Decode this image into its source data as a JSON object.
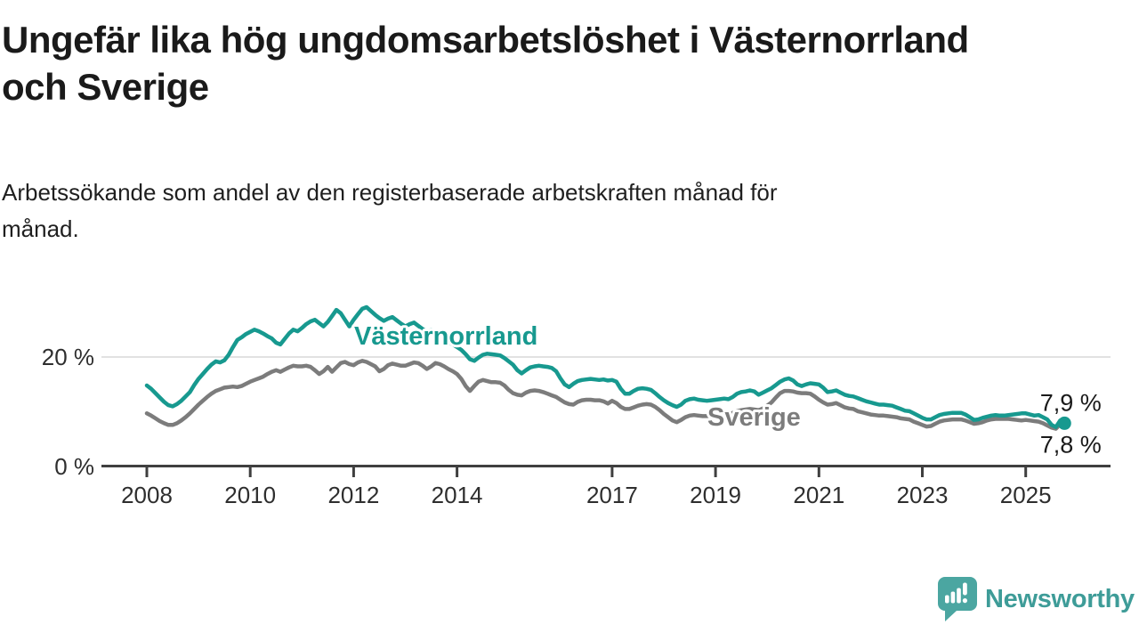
{
  "header": {
    "title": "Ungefär lika hög ungdomsarbetslöshet i Västernorrland\noch Sverige",
    "subtitle": "Arbetssökande som andel av den registerbaserade arbetskraften månad för\nmånad."
  },
  "branding": {
    "name": "Newsworthy",
    "icon": "newsworthy-speech-bubble-chart-icon",
    "icon_color": "#4BA6A1",
    "text_color": "#3E9C98"
  },
  "colors": {
    "vasternorrland": "#17998F",
    "sverige": "#7C7C7C",
    "axis_line": "#3f3f3f",
    "gridline": "#d9d9d9",
    "axis_text": "#2e2e2e",
    "end_label_text": "#1a1a1a"
  },
  "chart_data": {
    "type": "line",
    "title": "Ungefär lika hög ungdomsarbetslöshet i Västernorrland och Sverige",
    "subtitle": "Arbetssökande som andel av den registerbaserade arbetskraften månad för månad.",
    "unit": "%",
    "frequency": "monthly",
    "x_start": "2008-01",
    "x_end": "2025-10",
    "x_ticks": [
      "2008",
      "2010",
      "2012",
      "2014",
      "2017",
      "2019",
      "2021",
      "2023",
      "2025"
    ],
    "y_ticks": [
      {
        "value": 0,
        "label": "0 %"
      },
      {
        "value": 20,
        "label": "20 %"
      }
    ],
    "ylim": [
      0,
      32
    ],
    "grid": "horizontal-at-20-only",
    "legend_position": "inline-labels-on-lines",
    "series": [
      {
        "name": "Västernorrland",
        "color": "#17998F",
        "end_label": "7,9 %",
        "end_value": 7.9,
        "end_marker": "dot",
        "values": [
          14.8,
          14.2,
          13.4,
          12.6,
          11.8,
          11.2,
          11.0,
          11.4,
          12.0,
          12.8,
          13.6,
          14.9,
          16.0,
          16.9,
          17.8,
          18.6,
          19.2,
          19.0,
          19.4,
          20.4,
          21.8,
          23.1,
          23.6,
          24.2,
          24.6,
          25.0,
          24.7,
          24.3,
          23.8,
          23.4,
          22.6,
          22.3,
          23.3,
          24.3,
          25.0,
          24.7,
          25.3,
          26.0,
          26.5,
          26.8,
          26.2,
          25.6,
          26.4,
          27.5,
          28.6,
          28.0,
          26.8,
          25.6,
          26.8,
          27.8,
          28.8,
          29.1,
          28.4,
          27.7,
          27.1,
          26.6,
          27.0,
          27.3,
          26.7,
          26.1,
          25.6,
          26.0,
          26.3,
          25.7,
          25.1,
          24.6,
          24.9,
          24.3,
          23.7,
          23.1,
          22.7,
          22.3,
          21.8,
          21.3,
          20.5,
          19.6,
          19.3,
          19.9,
          20.4,
          20.6,
          20.5,
          20.4,
          20.3,
          19.8,
          19.2,
          18.6,
          17.6,
          17.0,
          17.6,
          18.1,
          18.3,
          18.4,
          18.3,
          18.2,
          18.0,
          17.4,
          16.1,
          15.0,
          14.5,
          15.1,
          15.6,
          15.8,
          15.9,
          16.0,
          15.9,
          15.8,
          15.9,
          15.7,
          15.8,
          15.5,
          14.2,
          13.3,
          13.3,
          13.8,
          14.2,
          14.3,
          14.2,
          14.0,
          13.4,
          12.7,
          12.1,
          11.6,
          11.2,
          10.9,
          11.3,
          12.0,
          12.3,
          12.4,
          12.2,
          12.1,
          12.0,
          12.1,
          12.2,
          12.3,
          12.4,
          12.3,
          12.7,
          13.3,
          13.6,
          13.7,
          13.9,
          13.7,
          13.1,
          13.5,
          13.9,
          14.3,
          14.9,
          15.5,
          15.9,
          16.1,
          15.7,
          15.0,
          14.7,
          15.0,
          15.2,
          15.1,
          15.0,
          14.4,
          13.6,
          13.7,
          13.9,
          13.5,
          13.1,
          12.9,
          12.8,
          12.5,
          12.2,
          11.9,
          11.7,
          11.5,
          11.3,
          11.3,
          11.2,
          11.1,
          10.8,
          10.5,
          10.2,
          10.1,
          9.7,
          9.3,
          8.9,
          8.6,
          8.6,
          9.0,
          9.4,
          9.6,
          9.7,
          9.8,
          9.8,
          9.8,
          9.5,
          9.0,
          8.5,
          8.6,
          8.9,
          9.1,
          9.3,
          9.4,
          9.3,
          9.3,
          9.4,
          9.5,
          9.6,
          9.7,
          9.7,
          9.5,
          9.3,
          9.4,
          9.0,
          8.6,
          7.6,
          7.2,
          8.4,
          7.9
        ]
      },
      {
        "name": "Sverige",
        "color": "#7C7C7C",
        "end_label": "7,8 %",
        "end_value": 7.8,
        "end_marker": "none",
        "values": [
          9.7,
          9.3,
          8.8,
          8.3,
          7.9,
          7.6,
          7.6,
          7.9,
          8.4,
          9.0,
          9.7,
          10.5,
          11.3,
          12.0,
          12.7,
          13.3,
          13.8,
          14.1,
          14.4,
          14.5,
          14.6,
          14.5,
          14.7,
          15.1,
          15.5,
          15.8,
          16.1,
          16.4,
          16.9,
          17.3,
          17.6,
          17.3,
          17.7,
          18.1,
          18.4,
          18.3,
          18.3,
          18.4,
          18.2,
          17.6,
          16.9,
          17.4,
          18.2,
          17.3,
          18.1,
          18.9,
          19.1,
          18.7,
          18.5,
          19.0,
          19.3,
          19.1,
          18.7,
          18.3,
          17.4,
          17.8,
          18.5,
          18.8,
          18.6,
          18.4,
          18.4,
          18.7,
          19.0,
          18.9,
          18.4,
          17.8,
          18.3,
          18.9,
          18.7,
          18.3,
          17.8,
          17.4,
          16.9,
          16.0,
          14.7,
          13.8,
          14.7,
          15.5,
          15.8,
          15.6,
          15.4,
          15.4,
          15.3,
          14.8,
          14.0,
          13.4,
          13.1,
          13.0,
          13.5,
          13.8,
          13.9,
          13.8,
          13.6,
          13.3,
          13.0,
          12.7,
          12.2,
          11.7,
          11.4,
          11.3,
          11.8,
          12.1,
          12.2,
          12.2,
          12.1,
          12.1,
          11.9,
          11.5,
          12.0,
          11.6,
          10.9,
          10.5,
          10.5,
          10.8,
          11.1,
          11.3,
          11.4,
          11.3,
          10.9,
          10.3,
          9.6,
          9.0,
          8.4,
          8.1,
          8.5,
          9.0,
          9.3,
          9.4,
          9.3,
          9.2,
          9.2,
          9.3,
          9.4,
          9.5,
          9.6,
          9.5,
          9.8,
          10.1,
          10.3,
          10.4,
          10.5,
          10.4,
          10.3,
          10.6,
          11.1,
          11.7,
          12.6,
          13.4,
          13.8,
          13.8,
          13.7,
          13.5,
          13.4,
          13.4,
          13.3,
          12.8,
          12.2,
          11.7,
          11.3,
          11.4,
          11.6,
          11.2,
          10.8,
          10.6,
          10.5,
          10.1,
          9.9,
          9.7,
          9.5,
          9.4,
          9.3,
          9.3,
          9.2,
          9.1,
          9.0,
          8.8,
          8.7,
          8.6,
          8.2,
          7.9,
          7.6,
          7.3,
          7.4,
          7.8,
          8.2,
          8.4,
          8.5,
          8.6,
          8.6,
          8.6,
          8.4,
          8.1,
          7.8,
          7.9,
          8.1,
          8.4,
          8.6,
          8.7,
          8.7,
          8.7,
          8.7,
          8.6,
          8.5,
          8.4,
          8.5,
          8.4,
          8.3,
          8.2,
          7.9,
          7.5,
          7.1,
          6.9,
          7.7,
          7.8
        ]
      }
    ]
  }
}
